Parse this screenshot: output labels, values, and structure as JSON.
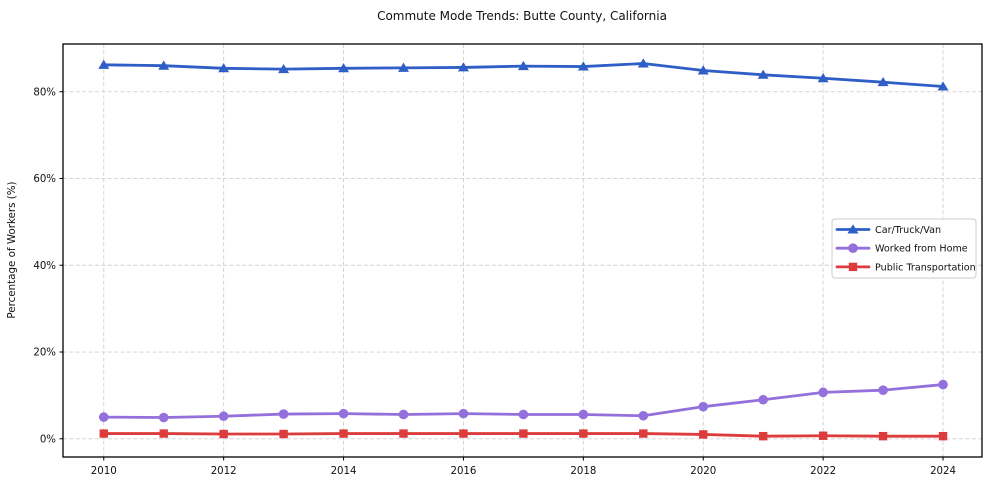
{
  "chart_data": {
    "type": "line",
    "title": "Commute Mode Trends: Butte County, California",
    "xlabel": "",
    "ylabel": "Percentage of Workers (%)",
    "x": [
      2010,
      2011,
      2012,
      2013,
      2014,
      2015,
      2016,
      2017,
      2018,
      2019,
      2020,
      2021,
      2022,
      2023,
      2024
    ],
    "series": [
      {
        "name": "Car/Truck/Van",
        "color": "#2e5ec6",
        "marker": "triangle",
        "values": [
          86.2,
          86.0,
          85.4,
          85.2,
          85.4,
          85.5,
          85.6,
          85.9,
          85.8,
          86.5,
          84.9,
          83.9,
          83.1,
          82.2,
          81.2
        ]
      },
      {
        "name": "Worked from Home",
        "color": "#9370DB",
        "marker": "circle",
        "values": [
          5.0,
          4.9,
          5.2,
          5.7,
          5.8,
          5.6,
          5.8,
          5.6,
          5.6,
          5.3,
          7.4,
          9.0,
          10.7,
          11.2,
          12.5
        ]
      },
      {
        "name": "Public Transportation",
        "color": "#DC3C3C",
        "marker": "square",
        "values": [
          1.2,
          1.2,
          1.1,
          1.1,
          1.2,
          1.2,
          1.2,
          1.2,
          1.2,
          1.2,
          1.0,
          0.6,
          0.7,
          0.6,
          0.6
        ]
      }
    ],
    "x_ticks": [
      2010,
      2012,
      2014,
      2016,
      2018,
      2020,
      2022,
      2024
    ],
    "x_tick_labels": [
      "2010",
      "2012",
      "2014",
      "2016",
      "2018",
      "2020",
      "2022",
      "2024"
    ],
    "y_ticks": [
      0,
      20,
      40,
      60,
      80
    ],
    "y_tick_labels": [
      "0%",
      "20%",
      "40%",
      "60%",
      "80%"
    ],
    "xlim": [
      2009.32,
      2024.65
    ],
    "ylim": [
      -4.2,
      91.0
    ],
    "grid": true,
    "grid_style": "dashed",
    "legend_position": "center-right",
    "colors": {
      "grid": "#d0d0d0",
      "spine": "#000000",
      "background": "#ffffff",
      "legend_border": "#cccccc"
    }
  }
}
